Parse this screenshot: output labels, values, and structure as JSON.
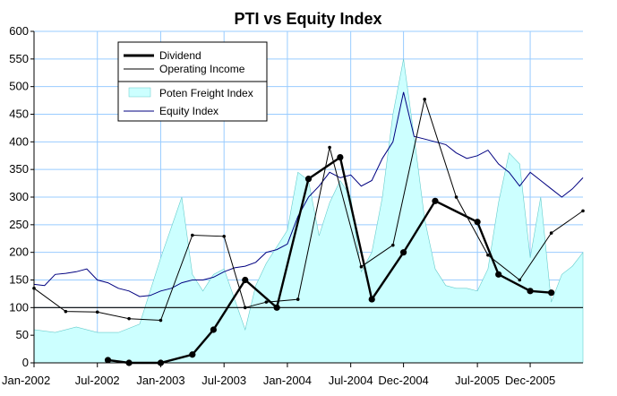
{
  "chart_data": {
    "type": "line",
    "title": "PTI vs Equity Index",
    "xlabel": "",
    "ylabel": "",
    "ylim": [
      0,
      600
    ],
    "yticks": [
      0,
      50,
      100,
      150,
      200,
      250,
      300,
      350,
      400,
      450,
      500,
      550,
      600
    ],
    "xlim": [
      "2002-01",
      "2006-05"
    ],
    "xtick_labels": [
      "Jan-2002",
      "Jul-2002",
      "Jan-2003",
      "Jul-2003",
      "Jan-2004",
      "Jul-2004",
      "Dec-2004",
      "Jul-2005",
      "Dec-2005"
    ],
    "xtick_dates": [
      "2002-01",
      "2002-07",
      "2003-01",
      "2003-07",
      "2004-01",
      "2004-07",
      "2004-12",
      "2005-07",
      "2005-12"
    ],
    "grid": true,
    "reference_line": 100,
    "legend": {
      "placement": "top-left",
      "items": [
        {
          "label": "Dividend",
          "style": "thick-line"
        },
        {
          "label": "Operating Income",
          "style": "thin-line"
        },
        {
          "label": "Poten Freight Index",
          "style": "area"
        },
        {
          "label": "Equity Index",
          "style": "navy-line"
        }
      ]
    },
    "colors": {
      "dividend": "#000000",
      "operating_income": "#000000",
      "freight_area": "#ccffff",
      "freight_edge": "#66cccc",
      "equity": "#000080",
      "grid": "#99ccff",
      "reference": "#000000"
    },
    "series": [
      {
        "name": "Dividend",
        "type": "line",
        "x": [
          "2002-08",
          "2002-10",
          "2003-01",
          "2003-04",
          "2003-06",
          "2003-09",
          "2003-12",
          "2004-03",
          "2004-06",
          "2004-09",
          "2004-12",
          "2005-03",
          "2005-07",
          "2005-09",
          "2005-12",
          "2006-02"
        ],
        "values": [
          5,
          0,
          0,
          15,
          60,
          150,
          100,
          333,
          372,
          115,
          200,
          293,
          255,
          160,
          130,
          127
        ]
      },
      {
        "name": "Operating Income",
        "type": "line",
        "x": [
          "2002-01",
          "2002-04",
          "2002-07",
          "2002-10",
          "2003-01",
          "2003-04",
          "2003-07",
          "2003-09",
          "2003-11",
          "2004-02",
          "2004-05",
          "2004-08",
          "2004-11",
          "2005-02",
          "2005-05",
          "2005-08",
          "2005-11",
          "2006-02",
          "2006-05"
        ],
        "values": [
          135,
          93,
          92,
          80,
          77,
          231,
          229,
          100,
          110,
          115,
          390,
          174,
          213,
          477,
          300,
          195,
          150,
          235,
          275
        ]
      },
      {
        "name": "Poten Freight Index",
        "type": "area",
        "x": [
          "2002-01",
          "2002-03",
          "2002-05",
          "2002-07",
          "2002-09",
          "2002-11",
          "2003-01",
          "2003-02",
          "2003-03",
          "2003-04",
          "2003-05",
          "2003-06",
          "2003-07",
          "2003-08",
          "2003-09",
          "2003-10",
          "2003-11",
          "2004-01",
          "2004-02",
          "2004-03",
          "2004-04",
          "2004-05",
          "2004-06",
          "2004-07",
          "2004-08",
          "2004-09",
          "2004-10",
          "2004-11",
          "2004-12",
          "2005-01",
          "2005-02",
          "2005-03",
          "2005-04",
          "2005-05",
          "2005-06",
          "2005-07",
          "2005-08",
          "2005-09",
          "2005-10",
          "2005-11",
          "2005-12",
          "2006-01",
          "2006-02",
          "2006-03",
          "2006-04",
          "2006-05"
        ],
        "values": [
          60,
          55,
          65,
          55,
          55,
          70,
          190,
          245,
          300,
          160,
          130,
          160,
          170,
          115,
          60,
          140,
          180,
          240,
          345,
          330,
          230,
          290,
          330,
          300,
          165,
          200,
          300,
          450,
          550,
          410,
          260,
          170,
          140,
          135,
          135,
          130,
          170,
          290,
          380,
          360,
          190,
          300,
          110,
          160,
          175,
          200
        ]
      },
      {
        "name": "Equity Index",
        "type": "line",
        "x": [
          "2002-01",
          "2002-02",
          "2002-03",
          "2002-04",
          "2002-05",
          "2002-06",
          "2002-07",
          "2002-08",
          "2002-09",
          "2002-10",
          "2002-11",
          "2002-12",
          "2003-01",
          "2003-02",
          "2003-03",
          "2003-04",
          "2003-05",
          "2003-06",
          "2003-07",
          "2003-08",
          "2003-09",
          "2003-10",
          "2003-11",
          "2003-12",
          "2004-01",
          "2004-02",
          "2004-03",
          "2004-04",
          "2004-05",
          "2004-06",
          "2004-07",
          "2004-08",
          "2004-09",
          "2004-10",
          "2004-11",
          "2004-12",
          "2005-01",
          "2005-02",
          "2005-03",
          "2005-04",
          "2005-05",
          "2005-06",
          "2005-07",
          "2005-08",
          "2005-09",
          "2005-10",
          "2005-11",
          "2005-12",
          "2006-01",
          "2006-02",
          "2006-03",
          "2006-04",
          "2006-05"
        ],
        "values": [
          142,
          140,
          160,
          162,
          165,
          170,
          150,
          145,
          135,
          130,
          120,
          122,
          130,
          135,
          145,
          150,
          150,
          155,
          165,
          172,
          175,
          182,
          200,
          205,
          215,
          265,
          300,
          320,
          345,
          335,
          340,
          320,
          330,
          370,
          400,
          490,
          410,
          405,
          400,
          395,
          380,
          370,
          375,
          385,
          360,
          345,
          320,
          345,
          330,
          315,
          300,
          315,
          335
        ]
      }
    ]
  }
}
